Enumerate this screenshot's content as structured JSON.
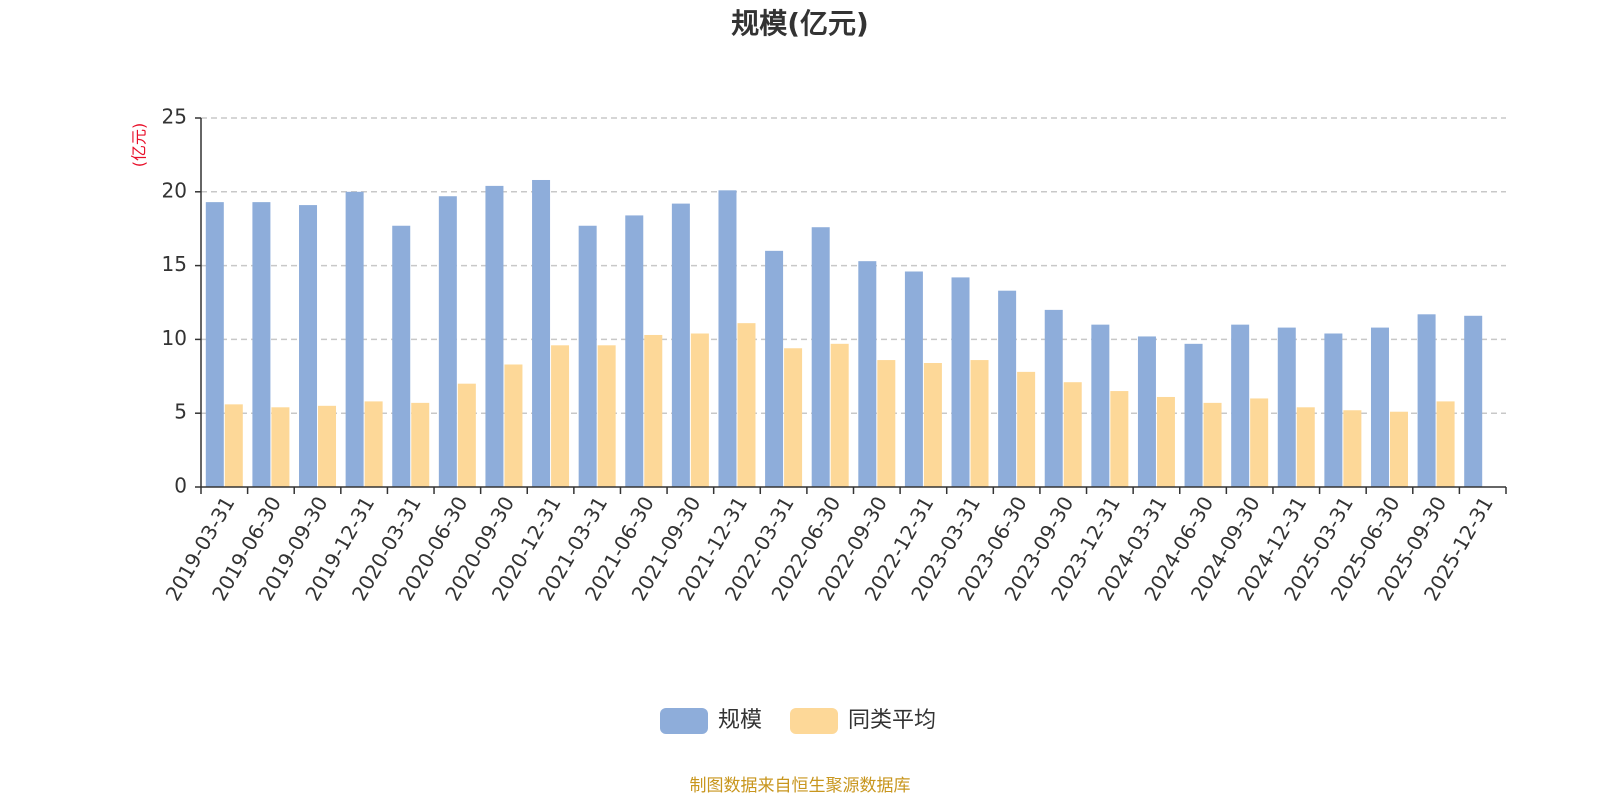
{
  "chart_data": {
    "type": "bar",
    "title": "规模(亿元)",
    "ylabel": "(亿元)",
    "xlabel": "",
    "ylim": [
      0,
      25
    ],
    "yticks": [
      0,
      5,
      10,
      15,
      20,
      25
    ],
    "grid": true,
    "legend_position": "bottom",
    "categories": [
      "2019-03-31",
      "2019-06-30",
      "2019-09-30",
      "2019-12-31",
      "2020-03-31",
      "2020-06-30",
      "2020-09-30",
      "2020-12-31",
      "2021-03-31",
      "2021-06-30",
      "2021-09-30",
      "2021-12-31",
      "2022-03-31",
      "2022-06-30",
      "2022-09-30",
      "2022-12-31",
      "2023-03-31",
      "2023-06-30",
      "2023-09-30",
      "2023-12-31",
      "2024-03-31",
      "2024-06-30",
      "2024-09-30",
      "2024-12-31",
      "2025-03-31",
      "2025-06-30",
      "2025-09-30",
      "2025-12-31"
    ],
    "series": [
      {
        "name": "规模",
        "color": "#8eadda",
        "values": [
          19.3,
          19.3,
          19.1,
          20.0,
          17.7,
          19.7,
          20.4,
          20.8,
          17.7,
          18.4,
          19.2,
          20.1,
          16.0,
          17.6,
          15.3,
          14.6,
          14.2,
          13.3,
          12.0,
          11.0,
          10.2,
          9.7,
          11.0,
          10.8,
          10.4,
          10.8,
          11.7,
          11.6
        ]
      },
      {
        "name": "同类平均",
        "color": "#fdd898",
        "values": [
          5.6,
          5.4,
          5.5,
          5.8,
          5.7,
          7.0,
          8.3,
          9.6,
          9.6,
          10.3,
          10.4,
          11.1,
          9.4,
          9.7,
          8.6,
          8.4,
          8.6,
          7.8,
          7.1,
          6.5,
          6.1,
          5.7,
          6.0,
          5.4,
          5.2,
          5.1,
          5.8,
          null
        ]
      }
    ]
  },
  "footer": {
    "source_text": "制图数据来自恒生聚源数据库"
  }
}
